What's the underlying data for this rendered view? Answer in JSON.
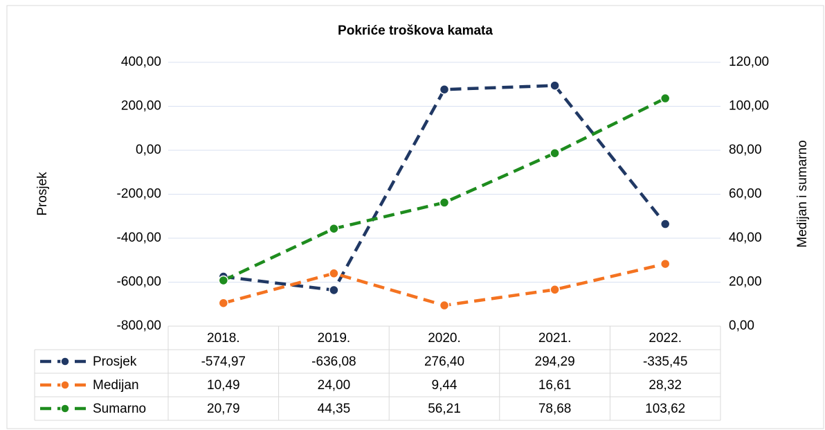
{
  "chart_data": {
    "type": "line",
    "title": "Pokriće troškova kamata",
    "ylabel": "Prosjek",
    "y2label": "Medijan i sumarno",
    "categories": [
      "2018.",
      "2019.",
      "2020.",
      "2021.",
      "2022."
    ],
    "series": [
      {
        "name": "Prosjek",
        "color": "#203864",
        "values": [
          -574.97,
          -636.08,
          276.4,
          294.29,
          -335.45
        ],
        "value_labels": [
          "-574,97",
          "-636,08",
          "276,40",
          "294,29",
          "-335,45"
        ]
      },
      {
        "name": "Medijan",
        "color": "#f47321",
        "axis": "y2",
        "values": [
          10.49,
          24.0,
          9.44,
          16.61,
          28.32
        ],
        "value_labels": [
          "10,49",
          "24,00",
          "9,44",
          "16,61",
          "28,32"
        ]
      },
      {
        "name": "Sumarno",
        "color": "#1e8c1e",
        "axis": "y2",
        "values": [
          20.79,
          44.35,
          56.21,
          78.68,
          103.62
        ],
        "value_labels": [
          "20,79",
          "44,35",
          "56,21",
          "78,68",
          "103,62"
        ]
      }
    ],
    "ylim": [
      -800,
      400
    ],
    "yticks": [
      {
        "value": -800,
        "label": "-800,00"
      },
      {
        "value": -600,
        "label": "-600,00"
      },
      {
        "value": -400,
        "label": "-400,00"
      },
      {
        "value": -200,
        "label": "-200,00"
      },
      {
        "value": 0,
        "label": "0,00"
      },
      {
        "value": 200,
        "label": "200,00"
      },
      {
        "value": 400,
        "label": "400,00"
      }
    ],
    "y2lim": [
      0,
      120
    ],
    "y2ticks": [
      {
        "value": 0,
        "label": "0,00"
      },
      {
        "value": 20,
        "label": "20,00"
      },
      {
        "value": 40,
        "label": "40,00"
      },
      {
        "value": 60,
        "label": "60,00"
      },
      {
        "value": 80,
        "label": "80,00"
      },
      {
        "value": 100,
        "label": "100,00"
      },
      {
        "value": 120,
        "label": "120,00"
      }
    ],
    "grid": true
  }
}
